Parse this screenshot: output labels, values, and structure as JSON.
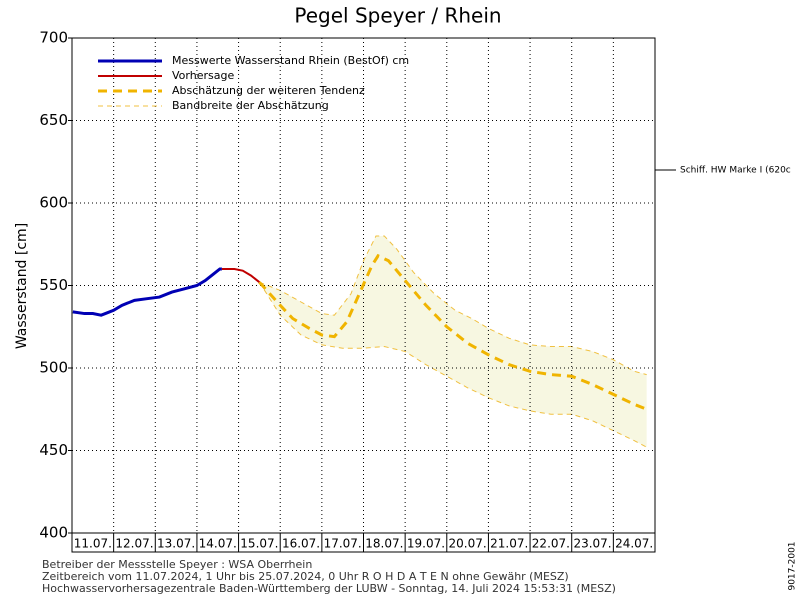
{
  "chart_data": {
    "type": "line",
    "title": "Pegel Speyer / Rhein",
    "y_label": "Wasserstand [cm]",
    "xlim": [
      0,
      14
    ],
    "xticks": [
      {
        "value": 0,
        "label": "11.07."
      },
      {
        "value": 1,
        "label": "12.07."
      },
      {
        "value": 2,
        "label": "13.07."
      },
      {
        "value": 3,
        "label": "14.07."
      },
      {
        "value": 4,
        "label": "15.07."
      },
      {
        "value": 5,
        "label": "16.07."
      },
      {
        "value": 6,
        "label": "17.07."
      },
      {
        "value": 7,
        "label": "18.07."
      },
      {
        "value": 8,
        "label": "19.07."
      },
      {
        "value": 9,
        "label": "20.07."
      },
      {
        "value": 10,
        "label": "21.07."
      },
      {
        "value": 11,
        "label": "22.07."
      },
      {
        "value": 12,
        "label": "23.07."
      },
      {
        "value": 13,
        "label": "24.07."
      }
    ],
    "ylim": [
      400,
      700
    ],
    "yticks": [
      400,
      450,
      500,
      550,
      600,
      650,
      700
    ],
    "grid": true,
    "series": [
      {
        "name": "Messwerte Wasserstand Rhein (BestOf)  cm",
        "color": "#0000b4",
        "style": "solid",
        "width": 3,
        "x": [
          0.02,
          0.3,
          0.5,
          0.7,
          0.8,
          1.0,
          1.2,
          1.5,
          1.8,
          2.1,
          2.4,
          2.7,
          3.0,
          3.2,
          3.4,
          3.55,
          3.6
        ],
        "values": [
          534,
          533,
          533,
          532,
          533,
          535,
          538,
          541,
          542,
          543,
          546,
          548,
          550,
          553,
          557,
          560,
          560
        ]
      },
      {
        "name": "Vorhersage",
        "color": "#c00000",
        "style": "solid",
        "width": 2,
        "x": [
          3.6,
          3.9,
          4.1,
          4.3,
          4.5
        ],
        "values": [
          560,
          560,
          559,
          556,
          552
        ]
      },
      {
        "name": "Abschätzung der weiteren Tendenz",
        "color": "#f0b400",
        "style": "dashed",
        "width": 3,
        "x": [
          4.5,
          5.0,
          5.3,
          5.7,
          6.0,
          6.3,
          6.6,
          6.9,
          7.2,
          7.35,
          7.6,
          8.0,
          8.5,
          9.0,
          9.5,
          10.0,
          10.5,
          11.0,
          11.5,
          12.0,
          12.5,
          13.0,
          13.5,
          13.8
        ],
        "values": [
          552,
          538,
          530,
          524,
          520,
          519,
          528,
          545,
          562,
          568,
          565,
          553,
          538,
          525,
          515,
          508,
          502,
          498,
          496,
          495,
          490,
          484,
          478,
          475
        ]
      },
      {
        "name": "Bandbreite der Abschätzung",
        "color": "#f0c040",
        "fill": "#f7f7e1",
        "style": "band",
        "width": 1,
        "x": [
          4.5,
          5.0,
          5.5,
          6.0,
          6.3,
          6.7,
          7.0,
          7.3,
          7.5,
          7.8,
          8.2,
          8.7,
          9.2,
          9.6,
          10.0,
          10.5,
          11.0,
          11.5,
          12.0,
          12.5,
          13.0,
          13.5,
          13.8
        ],
        "high": [
          552,
          547,
          540,
          533,
          532,
          545,
          565,
          580,
          580,
          572,
          558,
          545,
          535,
          530,
          524,
          518,
          514,
          513,
          513,
          510,
          505,
          498,
          496
        ],
        "x_low": [
          4.5,
          5.0,
          5.5,
          6.0,
          6.5,
          7.0,
          7.5,
          8.0,
          8.5,
          9.0,
          9.5,
          10.0,
          10.5,
          11.0,
          11.5,
          12.0,
          12.5,
          13.0,
          13.5,
          13.8
        ],
        "low": [
          552,
          532,
          520,
          514,
          512,
          512,
          513,
          510,
          502,
          495,
          488,
          482,
          477,
          474,
          472,
          472,
          468,
          462,
          456,
          452
        ]
      }
    ],
    "reference_line": {
      "label": "Schiff. HW Marke I (620c",
      "value": 620
    },
    "footer": [
      "Betreiber der Messstelle Speyer : WSA Oberrhein",
      "Zeitbereich vom 11.07.2024, 1 Uhr bis 25.07.2024, 0 Uhr   R O H D A T E N ohne Gewähr (MESZ)",
      "Hochwasservorhersagezentrale Baden-Württemberg der LUBW - Sonntag, 14. Juli 2024 15:53:31 (MESZ)"
    ],
    "code": "9017-2001"
  }
}
